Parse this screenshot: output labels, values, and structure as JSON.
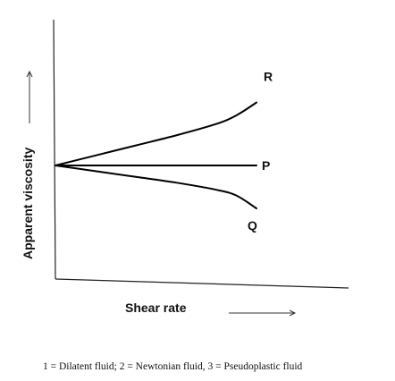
{
  "chart_data": {
    "type": "line",
    "xlabel": "Shear rate",
    "ylabel": "Apparent viscosity",
    "caption": "1 = Dilatent fluid; 2 = Newtonian fluid, 3 = Pseudoplastic fluid",
    "grid": false,
    "legend": "none",
    "series": [
      {
        "name": "R",
        "x": [
          0,
          0.2,
          0.4,
          0.6,
          0.8,
          0.9,
          1.0
        ],
        "y": [
          0.5,
          0.57,
          0.64,
          0.71,
          0.79,
          0.85,
          0.94
        ]
      },
      {
        "name": "P",
        "x": [
          0,
          1.0
        ],
        "y": [
          0.5,
          0.5
        ]
      },
      {
        "name": "Q",
        "x": [
          0,
          0.2,
          0.4,
          0.6,
          0.8,
          0.9,
          1.0
        ],
        "y": [
          0.5,
          0.46,
          0.42,
          0.38,
          0.33,
          0.29,
          0.2
        ]
      }
    ]
  }
}
